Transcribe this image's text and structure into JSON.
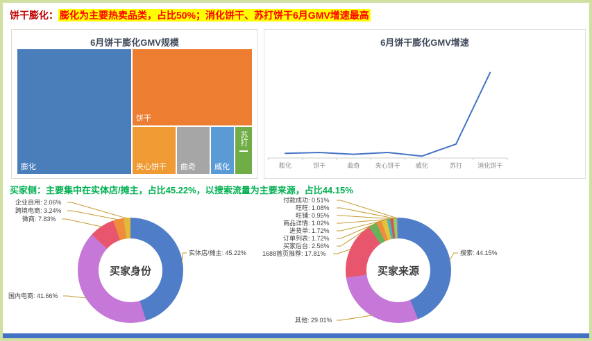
{
  "header": {
    "prefix": "饼干膨化：",
    "highlight": "膨化为主要热卖品类，占比50%；消化饼干、苏打饼干6月GMV增速最高"
  },
  "buyer_header": "买家侧：主要集中在实体店/摊主，占比45.22%，以搜索流量为主要来源，占比44.15%",
  "colors": {
    "highlight_bg": "#ffff00",
    "highlight_text": "#ff0000",
    "buyer_header_green": "#00b050",
    "footer_bar_blue": "#4472c4"
  },
  "chart_data": [
    {
      "type": "treemap",
      "title": "6月饼干膨化GMV规模",
      "items": [
        {
          "name": "膨化",
          "share_pct_est": 50,
          "color": "#4a7ebb"
        },
        {
          "name": "饼干",
          "share_pct_est": 30,
          "color": "#ed7d31"
        },
        {
          "name": "夹心饼干",
          "share_pct_est": 7,
          "color": "#ef9a33"
        },
        {
          "name": "曲奇",
          "share_pct_est": 5,
          "color": "#a6a6a6"
        },
        {
          "name": "威化",
          "share_pct_est": 4,
          "color": "#5b9bd5"
        },
        {
          "name": "苏打",
          "share_pct_est": 3,
          "color": "#70ad47"
        }
      ]
    },
    {
      "type": "line",
      "title": "6月饼干膨化GMV增速",
      "categories": [
        "膨化",
        "饼干",
        "曲奇",
        "夹心饼干",
        "威化",
        "苏打",
        "消化饼干"
      ],
      "values_relative_est": [
        5,
        6,
        4,
        6,
        2,
        15,
        92
      ],
      "line_color": "#4472c4",
      "ylim": [
        0,
        100
      ],
      "grid": false,
      "note": "no y-axis tick labels shown; values estimated from line height"
    },
    {
      "type": "pie",
      "subtype": "donut",
      "title": "买家身份",
      "segments": [
        {
          "name": "实体店/摊主",
          "value": 45.22,
          "color": "#4f7dc8"
        },
        {
          "name": "国内电商",
          "value": 41.66,
          "color": "#c678d8"
        },
        {
          "name": "微商",
          "value": 7.83,
          "color": "#e8566d"
        },
        {
          "name": "跨境电商",
          "value": 3.24,
          "color": "#ef8d3c"
        },
        {
          "name": "企业自用",
          "value": 2.06,
          "color": "#e2b93b"
        }
      ]
    },
    {
      "type": "pie",
      "subtype": "donut",
      "title": "买家来源",
      "segments": [
        {
          "name": "搜索",
          "value": 44.15,
          "color": "#4f7dc8"
        },
        {
          "name": "其他",
          "value": 29.01,
          "color": "#c678d8"
        },
        {
          "name": "1688首页推荐",
          "value": 17.81,
          "color": "#e8566d"
        },
        {
          "name": "买家后台",
          "value": 2.56,
          "color": "#67b25c"
        },
        {
          "name": "订单列表",
          "value": 1.72,
          "color": "#ef8d3c"
        },
        {
          "name": "进货单",
          "value": 1.72,
          "color": "#e2c23f"
        },
        {
          "name": "商品详情",
          "value": 1.02,
          "color": "#49b6b6"
        },
        {
          "name": "旺铺",
          "value": 0.95,
          "color": "#d9534f"
        },
        {
          "name": "旺旺",
          "value": 1.08,
          "color": "#8fd06c"
        },
        {
          "name": "付款成功",
          "value": 0.51,
          "color": "#7a86c8"
        }
      ]
    }
  ]
}
